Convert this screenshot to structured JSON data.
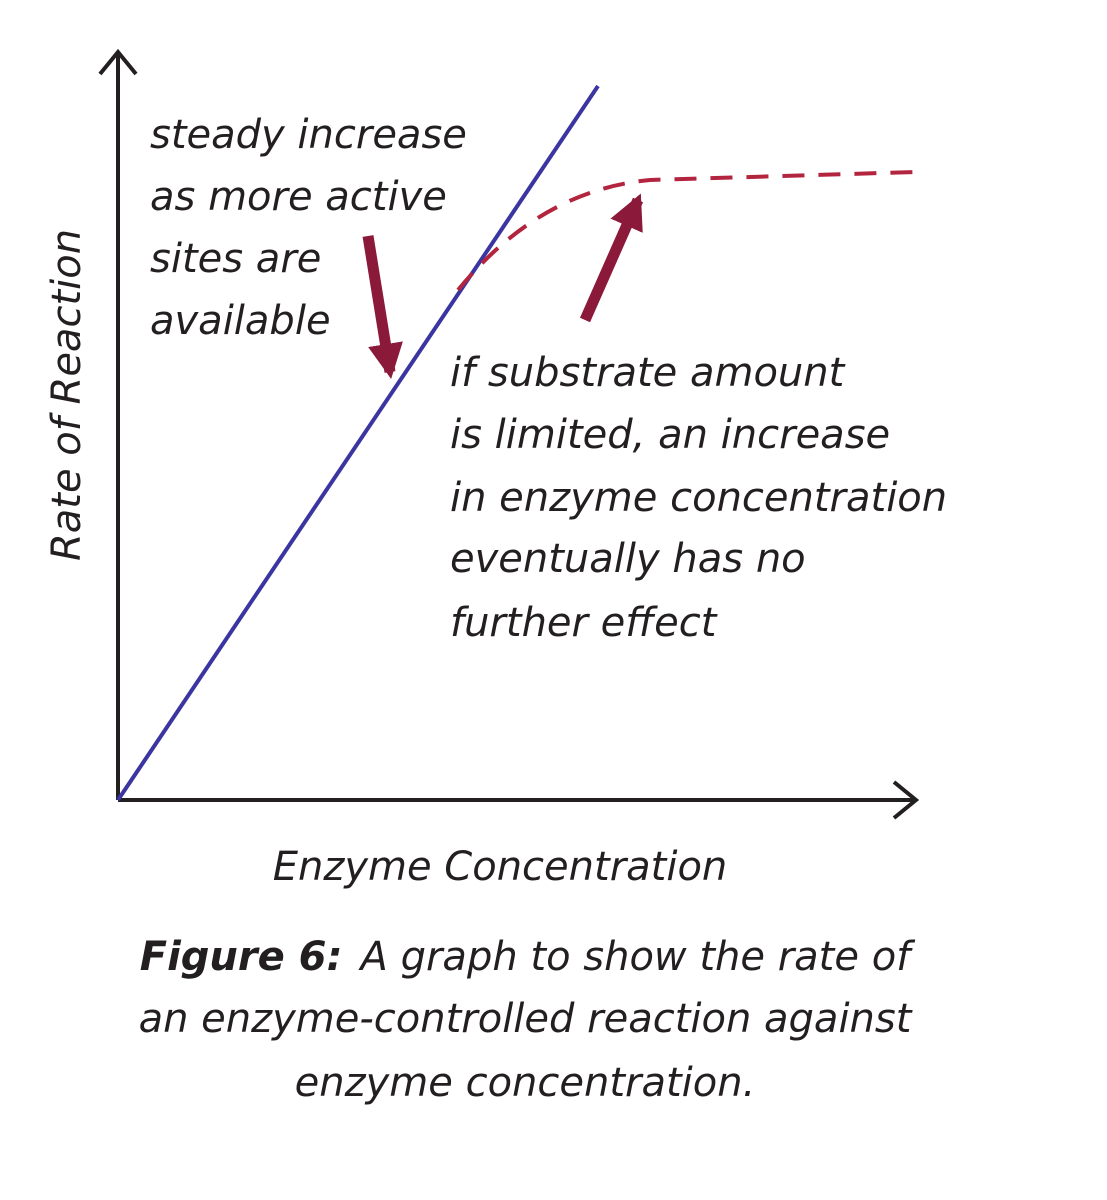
{
  "axes": {
    "y_label": "Rate of Reaction",
    "x_label": "Enzyme Concentration"
  },
  "annotations": [
    {
      "lines": [
        "steady increase",
        "as more active",
        "sites are",
        "available"
      ]
    },
    {
      "lines": [
        "if substrate amount",
        "is limited, an increase",
        "in enzyme concentration",
        "eventually has no",
        "further effect"
      ]
    }
  ],
  "caption": {
    "label": "Figure 6:",
    "lines": [
      "A graph to show the rate of",
      "an enzyme-controlled reaction against",
      "enzyme concentration."
    ]
  }
}
